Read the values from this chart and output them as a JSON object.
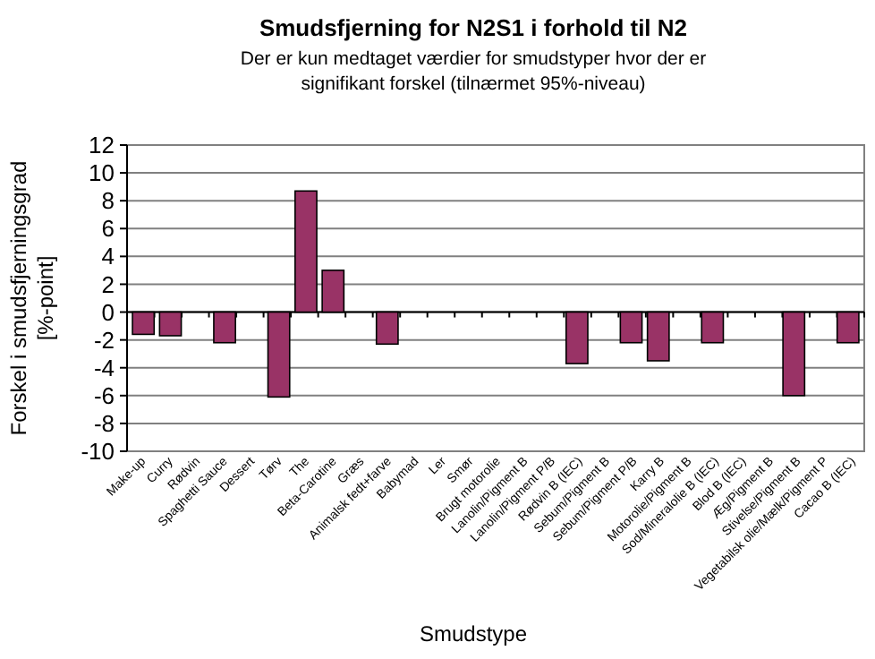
{
  "chart_data": {
    "type": "bar",
    "title": "Smudsfjerning for N2S1 i forhold til N2",
    "subtitle": "Der er kun medtaget værdier for smudstyper hvor der er\nsignifikant forskel (tilnærmet 95%-niveau)",
    "xlabel": "Smudstype",
    "ylabel": "Forskel i smudsfjerningsgrad\n[%-point]",
    "categories": [
      "Make-up",
      "Curry",
      "Rødvin",
      "Spaghetti Sauce",
      "Dessert",
      "Tørv",
      "The",
      "Beta-Carotine",
      "Græs",
      "Animalsk fedt+farve",
      "Babymad",
      "Ler",
      "Smør",
      "Brugt motorolie",
      "Lanolin/Pigment B",
      "Lanolin/Pigment P/B",
      "Rødvin B (IEC)",
      "Sebum/Pigment B",
      "Sebum/Pigment P/B",
      "Karry B",
      "Motorolie/Pigment B",
      "Sod/Mineralolie B (IEC)",
      "Blod B (IEC)",
      "Æg/Pigment B",
      "Stivelse/Pigment B",
      "Vegetabilsk olie/Mælk/Pigment P",
      "Cacao B (IEC)"
    ],
    "values": [
      -1.6,
      -1.7,
      null,
      -2.2,
      null,
      -6.1,
      8.7,
      3.0,
      null,
      -2.3,
      null,
      null,
      null,
      null,
      null,
      null,
      -3.7,
      null,
      -2.2,
      -3.5,
      null,
      -2.2,
      null,
      null,
      -6.0,
      null,
      -2.2
    ],
    "color": "#993366",
    "ylim": [
      -10,
      12
    ],
    "yticks": [
      -10,
      -8,
      -6,
      -4,
      -2,
      0,
      2,
      4,
      6,
      8,
      10,
      12
    ],
    "grid": "y"
  }
}
